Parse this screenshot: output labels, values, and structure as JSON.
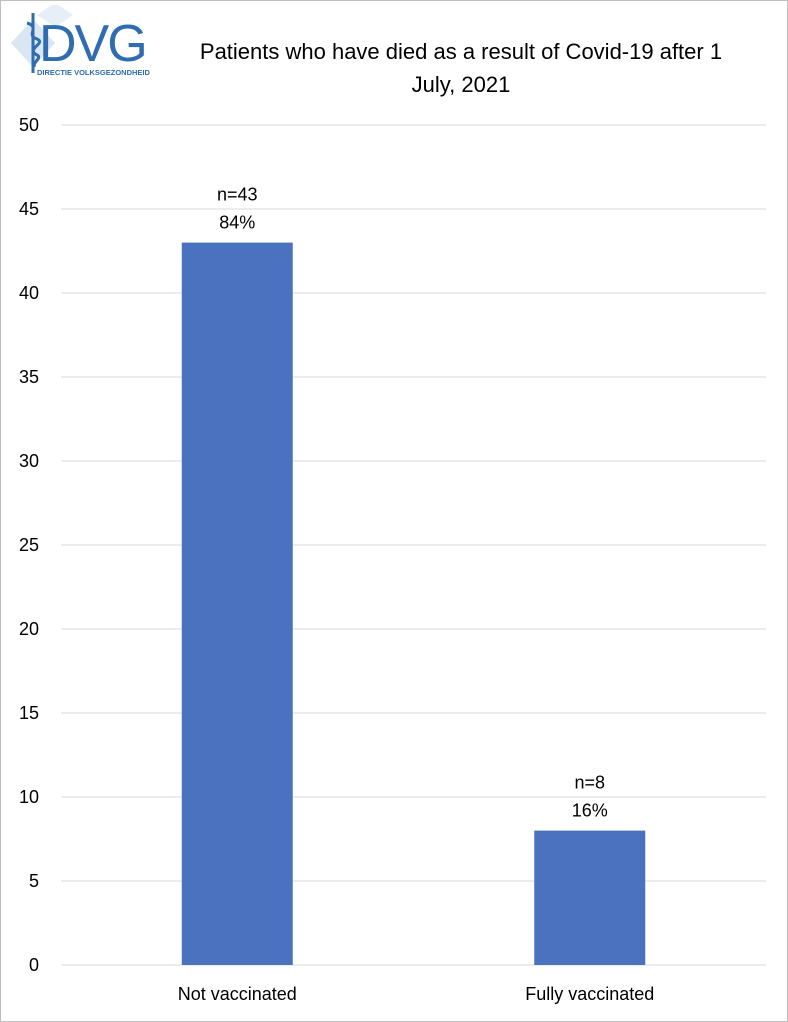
{
  "logo": {
    "text": "DVG",
    "subtitle": "DIRECTIE VOLKSGEZONDHEID",
    "color": "#2f6db0",
    "light_color": "#b9cde6"
  },
  "chart_data": {
    "type": "bar",
    "title": "Patients who have died as a result of Covid-19 after 1 July, 2021",
    "title_lines": [
      "Patients who have died as a result of Covid-19 after 1",
      "July, 2021"
    ],
    "categories": [
      "Not vaccinated",
      "Fully vaccinated"
    ],
    "values": [
      43,
      8
    ],
    "data_labels": [
      {
        "count": "n=43",
        "percent": "84%"
      },
      {
        "count": "n=8",
        "percent": "16%"
      }
    ],
    "ylim": [
      0,
      50
    ],
    "yticks": [
      0,
      5,
      10,
      15,
      20,
      25,
      30,
      35,
      40,
      45,
      50
    ],
    "grid": true,
    "legend": "none",
    "bar_color": "#4a72bf",
    "xlabel": "",
    "ylabel": ""
  }
}
